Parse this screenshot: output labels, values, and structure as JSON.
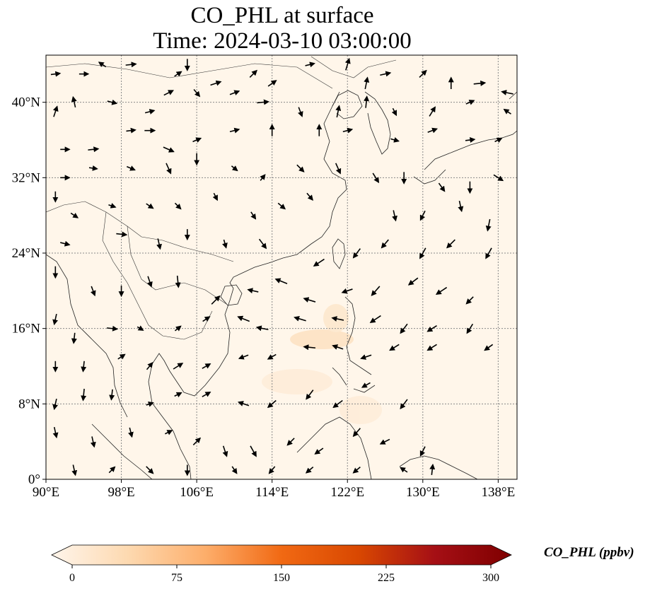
{
  "title": {
    "line1": "CO_PHL at surface",
    "line2": "Time: 2024-03-10 03:00:00"
  },
  "map": {
    "lon_range": [
      90,
      140
    ],
    "lat_range": [
      0,
      45
    ],
    "lon_ticks": [
      {
        "value": 90,
        "label": "90°E"
      },
      {
        "value": 98,
        "label": "98°E"
      },
      {
        "value": 106,
        "label": "106°E"
      },
      {
        "value": 114,
        "label": "114°E"
      },
      {
        "value": 122,
        "label": "122°E"
      },
      {
        "value": 130,
        "label": "130°E"
      },
      {
        "value": 138,
        "label": "138°E"
      }
    ],
    "lat_ticks": [
      {
        "value": 0,
        "label": "0°"
      },
      {
        "value": 8,
        "label": "8°N"
      },
      {
        "value": 16,
        "label": "16°N"
      },
      {
        "value": 24,
        "label": "24°N"
      },
      {
        "value": 32,
        "label": "32°N"
      },
      {
        "value": 40,
        "label": "40°N"
      }
    ],
    "background_color": "#fff6ea",
    "gridlines": true
  },
  "colorbar": {
    "label": "CO_PHL (ppbv)",
    "min": 0,
    "max": 300,
    "ticks": [
      "0",
      "75",
      "150",
      "225",
      "300"
    ],
    "colors": [
      "#fff5eb",
      "#fdd9b0",
      "#fdae6b",
      "#f16913",
      "#d94801",
      "#a50f15",
      "#7f0000"
    ]
  },
  "winds": [
    [
      91,
      43,
      0.8,
      0.1
    ],
    [
      94,
      43,
      0.8,
      0
    ],
    [
      96,
      44,
      -0.6,
      0.4
    ],
    [
      99,
      44,
      0.9,
      0.1
    ],
    [
      104,
      43,
      0.6,
      0.4
    ],
    [
      105,
      44,
      0,
      -1
    ],
    [
      108,
      42,
      0.9,
      0.3
    ],
    [
      112,
      43,
      0.6,
      0.6
    ],
    [
      114,
      42,
      0.7,
      0.5
    ],
    [
      118,
      44,
      0.8,
      0.2
    ],
    [
      122,
      44,
      0.3,
      1
    ],
    [
      124,
      42,
      0.2,
      1
    ],
    [
      126,
      43,
      0.9,
      0.2
    ],
    [
      130,
      43,
      0.6,
      0.6
    ],
    [
      133,
      42,
      0,
      1
    ],
    [
      136,
      42,
      1,
      0.1
    ],
    [
      139,
      41,
      -1,
      0.2
    ],
    [
      91,
      39,
      0.3,
      0.9
    ],
    [
      93,
      40,
      -0.2,
      0.9
    ],
    [
      97,
      40,
      0.8,
      -0.2
    ],
    [
      101,
      39,
      0.8,
      0.2
    ],
    [
      103,
      41,
      0.8,
      0.4
    ],
    [
      106,
      41,
      0.5,
      -0.6
    ],
    [
      110,
      41,
      0.8,
      0.3
    ],
    [
      113,
      40,
      1,
      0.1
    ],
    [
      117,
      39,
      0.3,
      -0.8
    ],
    [
      121,
      39,
      0.2,
      1
    ],
    [
      124,
      40,
      0.1,
      1
    ],
    [
      127,
      39,
      0.3,
      -0.6
    ],
    [
      131,
      39,
      0.5,
      0.8
    ],
    [
      135,
      40,
      0.7,
      0.3
    ],
    [
      139,
      39,
      -0.6,
      0.4
    ],
    [
      92,
      35,
      0.8,
      0
    ],
    [
      95,
      35,
      0.9,
      0.1
    ],
    [
      99,
      37,
      0.8,
      0.1
    ],
    [
      101,
      37,
      0.9,
      0
    ],
    [
      103,
      35,
      0.9,
      -0.4
    ],
    [
      106,
      36,
      0.7,
      0.3
    ],
    [
      110,
      37,
      0.8,
      0.2
    ],
    [
      114,
      37,
      0,
      1
    ],
    [
      119,
      37,
      0,
      1
    ],
    [
      122,
      37,
      0.8,
      0.2
    ],
    [
      127,
      36,
      0.7,
      -0.2
    ],
    [
      131,
      37,
      0.8,
      0.3
    ],
    [
      135,
      36,
      0.8,
      0.1
    ],
    [
      138,
      36,
      0.6,
      0.3
    ],
    [
      92,
      32,
      0.8,
      0
    ],
    [
      95,
      33,
      0.7,
      -0.1
    ],
    [
      99,
      33,
      0.7,
      -0.3
    ],
    [
      103,
      33,
      0.4,
      -0.9
    ],
    [
      106,
      34,
      0,
      -1
    ],
    [
      110,
      33,
      0.5,
      -0.4
    ],
    [
      113,
      32,
      0.4,
      0.5
    ],
    [
      117,
      33,
      0.6,
      -0.6
    ],
    [
      121,
      33,
      0.4,
      -0.9
    ],
    [
      125,
      32,
      0.5,
      -0.8
    ],
    [
      128,
      32,
      0,
      -1
    ],
    [
      132,
      31,
      0.5,
      -0.7
    ],
    [
      135,
      31,
      0,
      -1
    ],
    [
      138,
      32,
      0.8,
      -0.5
    ],
    [
      91,
      30,
      0,
      -0.9
    ],
    [
      93,
      28,
      0.6,
      -0.4
    ],
    [
      97,
      29,
      0.6,
      -0.2
    ],
    [
      101,
      29,
      0.6,
      -0.4
    ],
    [
      104,
      29,
      0.5,
      -0.5
    ],
    [
      108,
      30,
      0.3,
      -0.6
    ],
    [
      112,
      28,
      0.4,
      -0.6
    ],
    [
      115,
      29,
      0.6,
      -0.5
    ],
    [
      118,
      30,
      0.5,
      -0.6
    ],
    [
      127,
      28,
      0.2,
      -0.9
    ],
    [
      130,
      28,
      -0.4,
      -0.8
    ],
    [
      134,
      29,
      0.2,
      -0.9
    ],
    [
      137,
      27,
      -0.2,
      -1
    ],
    [
      92,
      25,
      0.8,
      -0.2
    ],
    [
      98,
      26,
      0.9,
      -0.1
    ],
    [
      102,
      25,
      0.2,
      -0.9
    ],
    [
      105,
      26,
      0,
      -0.9
    ],
    [
      109,
      25,
      0.2,
      -0.7
    ],
    [
      113,
      25,
      0.6,
      -0.8
    ],
    [
      119,
      23,
      -0.9,
      -0.6
    ],
    [
      123,
      24,
      -0.6,
      -0.8
    ],
    [
      126,
      25,
      -0.6,
      -0.7
    ],
    [
      130,
      24,
      -0.5,
      -0.9
    ],
    [
      133,
      25,
      -0.7,
      -0.7
    ],
    [
      137,
      24,
      -0.5,
      -0.9
    ],
    [
      91,
      22,
      0,
      -1
    ],
    [
      95,
      20,
      0.3,
      -0.8
    ],
    [
      98,
      20,
      0,
      -0.9
    ],
    [
      101,
      21,
      0.3,
      -0.9
    ],
    [
      104,
      21,
      0.1,
      -1
    ],
    [
      108,
      19,
      0.7,
      0.7
    ],
    [
      112,
      20,
      -0.9,
      0.2
    ],
    [
      115,
      21,
      -1,
      0.4
    ],
    [
      118,
      19,
      -1,
      0.3
    ],
    [
      122,
      20,
      -0.9,
      -0.3
    ],
    [
      125,
      20,
      -0.7,
      -0.8
    ],
    [
      129,
      21,
      -0.8,
      -0.6
    ],
    [
      132,
      20,
      -0.9,
      -0.6
    ],
    [
      135,
      19,
      -0.6,
      -0.6
    ],
    [
      91,
      17,
      -0.2,
      -0.9
    ],
    [
      93,
      15,
      -0.1,
      -0.9
    ],
    [
      97,
      16,
      0.9,
      -0.1
    ],
    [
      100,
      16,
      0.5,
      -0.3
    ],
    [
      104,
      16,
      0.5,
      0.4
    ],
    [
      107,
      17,
      0.6,
      0.4
    ],
    [
      111,
      17,
      -1,
      0.4
    ],
    [
      113,
      16,
      -1,
      0.2
    ],
    [
      117,
      17,
      -1,
      0.3
    ],
    [
      121,
      17,
      -1,
      0.2
    ],
    [
      125,
      17,
      -0.9,
      -0.6
    ],
    [
      128,
      16,
      -0.6,
      -0.8
    ],
    [
      131,
      16,
      -0.8,
      -0.5
    ],
    [
      135,
      16,
      -0.5,
      -0.8
    ],
    [
      91,
      12,
      0,
      -0.9
    ],
    [
      94,
      12,
      -0.1,
      -0.9
    ],
    [
      98,
      13,
      0.6,
      0.4
    ],
    [
      101,
      12,
      0.5,
      0.6
    ],
    [
      104,
      12,
      0.8,
      0.5
    ],
    [
      107,
      12,
      0.7,
      0.4
    ],
    [
      111,
      13,
      -0.8,
      -0.3
    ],
    [
      114,
      13,
      -0.7,
      -0.4
    ],
    [
      118,
      14,
      -1,
      0.1
    ],
    [
      121,
      14,
      -0.9,
      0.3
    ],
    [
      124,
      13,
      -0.9,
      -0.3
    ],
    [
      127,
      14,
      -0.8,
      -0.5
    ],
    [
      131,
      14,
      -0.8,
      -0.5
    ],
    [
      137,
      14,
      -0.7,
      -0.5
    ],
    [
      91,
      8,
      -0.2,
      -0.9
    ],
    [
      94,
      9,
      -0.1,
      -1
    ],
    [
      97,
      9,
      -0.1,
      -0.9
    ],
    [
      101,
      8,
      0.6,
      0.2
    ],
    [
      104,
      9,
      0.6,
      0.3
    ],
    [
      107,
      9,
      0.7,
      0.4
    ],
    [
      111,
      8,
      -0.9,
      0.3
    ],
    [
      114,
      8,
      -0.7,
      -0.6
    ],
    [
      118,
      9,
      -0.6,
      -0.8
    ],
    [
      121,
      8,
      -0.8,
      -0.6
    ],
    [
      124,
      10,
      -0.7,
      -0.4
    ],
    [
      128,
      8,
      -0.6,
      -0.8
    ],
    [
      91,
      5,
      0.2,
      -0.9
    ],
    [
      95,
      4,
      0.2,
      -0.9
    ],
    [
      99,
      5,
      0.2,
      -0.8
    ],
    [
      103,
      5,
      0.6,
      0.3
    ],
    [
      106,
      4,
      0.6,
      0.6
    ],
    [
      109,
      3,
      0.3,
      -0.9
    ],
    [
      112,
      3,
      0.5,
      -0.9
    ],
    [
      116,
      4,
      -0.6,
      -0.6
    ],
    [
      119,
      3,
      -0.7,
      -0.5
    ],
    [
      123,
      5,
      -0.6,
      -0.7
    ],
    [
      126,
      4,
      -0.8,
      -0.4
    ],
    [
      130,
      3,
      -0.4,
      -0.8
    ],
    [
      93,
      1,
      0.2,
      -0.9
    ],
    [
      97,
      1,
      0.5,
      0.5
    ],
    [
      101,
      1,
      0.6,
      -0.6
    ],
    [
      105,
      1,
      0,
      -0.9
    ],
    [
      110,
      1,
      0.4,
      -0.6
    ],
    [
      114,
      1,
      -0.5,
      -0.6
    ],
    [
      118,
      1,
      -0.6,
      -0.5
    ],
    [
      123,
      1,
      -0.6,
      -0.5
    ],
    [
      128,
      1,
      -0.6,
      0.4
    ],
    [
      131,
      1,
      0.1,
      0.9
    ]
  ]
}
